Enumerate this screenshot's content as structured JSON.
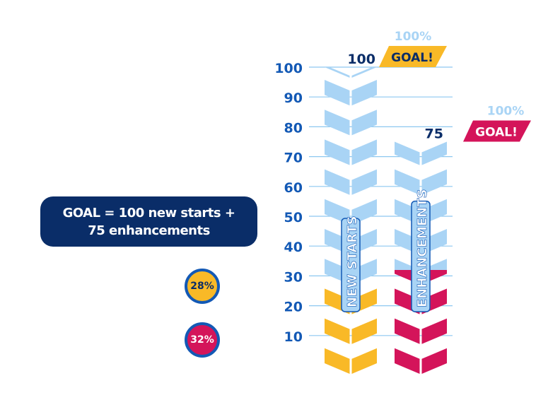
{
  "legend_box": {
    "line1": "GOAL = 100 new starts +",
    "line2": "75 enhancements"
  },
  "badges": [
    {
      "label": "28%",
      "color": "#f9b927"
    },
    {
      "label": "32%",
      "color": "#d4145a"
    }
  ],
  "colors": {
    "goal_light": "#a9d4f5",
    "new_starts_progress": "#f9b927",
    "enhancements_progress": "#d4145a",
    "axis_text": "#1359b5",
    "gridline": "#8dc8f0",
    "goal_tag_text": "#ffffff"
  },
  "chart_data": {
    "type": "bar",
    "y_ticks": [
      10,
      20,
      30,
      40,
      50,
      60,
      70,
      80,
      90,
      100
    ],
    "ylim": [
      0,
      100
    ],
    "grid": true,
    "series": [
      {
        "name": "NEW STARTS",
        "goal": 100,
        "goal_label": "100",
        "progress": 28,
        "goal_tag": "GOAL!",
        "goal_percent": "100%",
        "progress_color": "#f9b927",
        "tag_color": "#f9b927",
        "tag_text_color": "#0a2d68"
      },
      {
        "name": "ENHANCEMENTS",
        "goal": 75,
        "goal_label": "75",
        "progress": 32,
        "goal_tag": "GOAL!",
        "goal_percent": "100%",
        "progress_color": "#d4145a",
        "tag_color": "#d4145a",
        "tag_text_color": "#ffffff"
      }
    ]
  }
}
